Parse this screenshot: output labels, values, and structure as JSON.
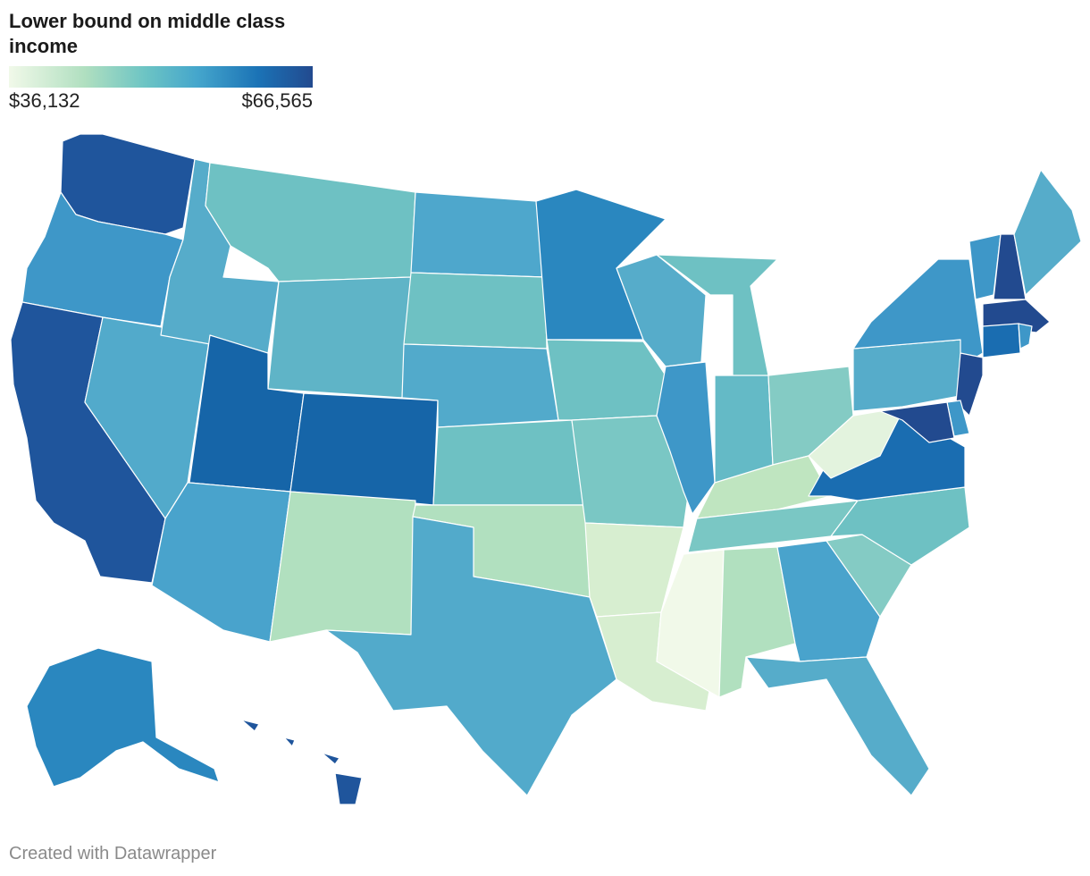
{
  "title": "Lower bound on middle class income",
  "legend": {
    "min_label": "$36,132",
    "max_label": "$66,565",
    "colors": [
      "#f1f9e9",
      "#b0dfc0",
      "#6cc4c4",
      "#45a6cc",
      "#1b73b6",
      "#224a8f"
    ]
  },
  "footer": "Created with Datawrapper",
  "state_colors": {
    "WA": "#1f559c",
    "OR": "#3e97c8",
    "CA": "#1f559c",
    "NV": "#52aacb",
    "ID": "#56acca",
    "MT": "#6ec1c3",
    "WY": "#5fb4c7",
    "UT": "#1665a8",
    "CO": "#1665a8",
    "AZ": "#49a3cc",
    "NM": "#b1e0bf",
    "ND": "#4ea7cc",
    "SD": "#6ec1c3",
    "NE": "#52aacb",
    "KS": "#6ec1c3",
    "OK": "#b1e0bf",
    "TX": "#52aacb",
    "MN": "#2a87bf",
    "IA": "#6ec1c3",
    "MO": "#7ac7c4",
    "AR": "#d7eed0",
    "LA": "#d7eed0",
    "WI": "#56acca",
    "IL": "#3e97c8",
    "MI": "#6ec1c3",
    "IN": "#64bac6",
    "OH": "#84cbc4",
    "KY": "#bfe5c0",
    "TN": "#7ac7c4",
    "MS": "#f1f9e9",
    "AL": "#b1e0bf",
    "GA": "#49a3cc",
    "FL": "#56acca",
    "SC": "#84cbc4",
    "NC": "#6ec1c3",
    "VA": "#1a6db1",
    "WV": "#e3f3de",
    "PA": "#56acca",
    "NY": "#3e97c8",
    "VT": "#3e97c8",
    "NH": "#224a8f",
    "ME": "#56acca",
    "MA": "#224a8f",
    "CT": "#1a6db1",
    "RI": "#3e97c8",
    "NJ": "#224a8f",
    "DE": "#3e97c8",
    "MD": "#224a8f",
    "AK": "#2a87bf",
    "HI": "#1f559c"
  }
}
